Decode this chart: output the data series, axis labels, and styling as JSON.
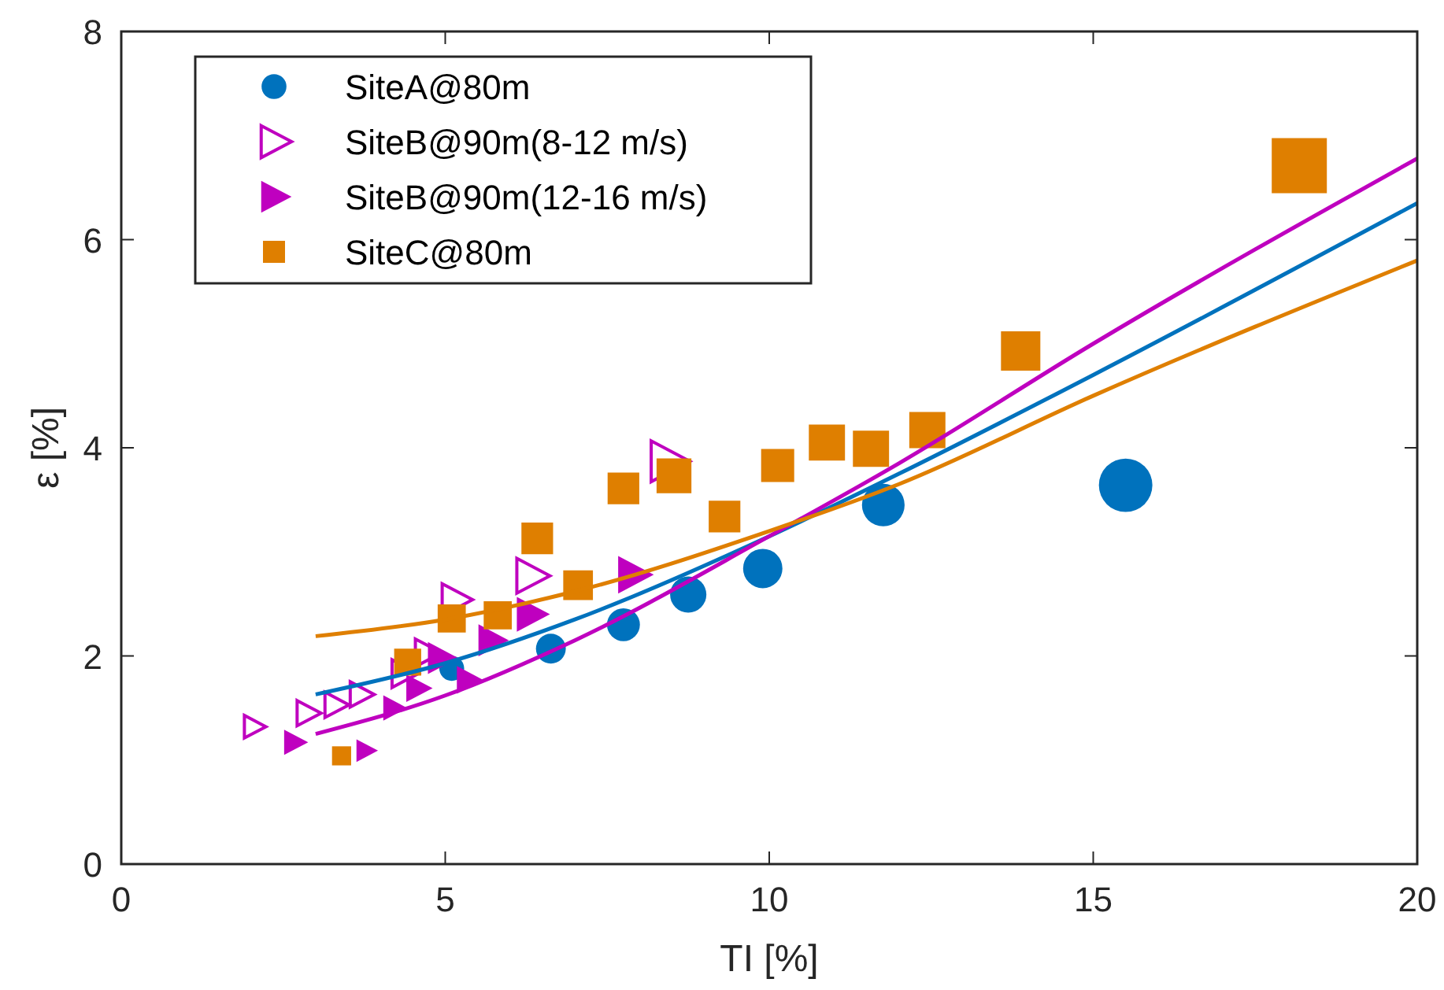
{
  "chart_data": {
    "type": "bubble",
    "xlabel": "TI [%]",
    "ylabel": "ε [%]",
    "xlim": [
      0,
      20
    ],
    "ylim": [
      0,
      8
    ],
    "xticks": [
      0,
      5,
      10,
      15,
      20
    ],
    "yticks": [
      0,
      2,
      4,
      6,
      8
    ],
    "grid": false,
    "legend": "top left",
    "series": [
      {
        "name": "SiteA@80m",
        "marker": "circle",
        "color": "#0072bd",
        "x": [
          5.1,
          6.63,
          7.75,
          8.75,
          9.9,
          11.76,
          15.5
        ],
        "values": [
          1.88,
          2.07,
          2.3,
          2.59,
          2.84,
          3.45,
          3.64
        ],
        "sizes": [
          0.16,
          0.23,
          0.28,
          0.34,
          0.4,
          0.47,
          0.74
        ]
      },
      {
        "name": "SiteB@90m(8-12 m/s)",
        "marker": "triangle-open",
        "color": "#bf00bf",
        "x": [
          2.04,
          2.87,
          3.3,
          3.69,
          4.35,
          4.71,
          5.15,
          6.32,
          8.43
        ],
        "values": [
          1.32,
          1.45,
          1.53,
          1.63,
          1.83,
          2.03,
          2.54,
          2.77,
          3.87
        ],
        "sizes": [
          0.08,
          0.1,
          0.1,
          0.1,
          0.12,
          0.12,
          0.16,
          0.19,
          0.26
        ]
      },
      {
        "name": "SiteB@90m(12-16 m/s)",
        "marker": "triangle",
        "color": "#bf00bf",
        "x": [
          2.67,
          3.77,
          4.2,
          4.57,
          4.93,
          5.35,
          5.71,
          6.32,
          7.9
        ],
        "values": [
          1.17,
          1.09,
          1.5,
          1.69,
          1.98,
          1.77,
          2.15,
          2.4,
          2.78
        ],
        "sizes": [
          0.1,
          0.08,
          0.1,
          0.12,
          0.16,
          0.12,
          0.16,
          0.19,
          0.22
        ]
      },
      {
        "name": "SiteC@80m",
        "marker": "square",
        "color": "#df7f00",
        "x": [
          3.4,
          4.42,
          5.1,
          5.81,
          6.42,
          7.05,
          7.75,
          8.53,
          9.31,
          10.13,
          10.89,
          11.57,
          12.44,
          13.88,
          18.18
        ],
        "values": [
          1.04,
          1.94,
          2.36,
          2.39,
          3.13,
          2.68,
          3.61,
          3.73,
          3.34,
          3.83,
          4.05,
          3.99,
          4.17,
          4.93,
          6.71
        ],
        "sizes": [
          0.12,
          0.24,
          0.26,
          0.26,
          0.33,
          0.29,
          0.33,
          0.4,
          0.33,
          0.36,
          0.43,
          0.43,
          0.43,
          0.51,
          1
        ]
      },
      {
        "type": "line",
        "color": "#0072bd",
        "x": [
          3,
          5,
          7,
          10,
          12,
          15,
          20
        ],
        "values": [
          1.63,
          1.93,
          2.35,
          3.15,
          3.75,
          4.7,
          6.35
        ]
      },
      {
        "type": "line",
        "color": "#bf00bf",
        "x": [
          3,
          5,
          7,
          10,
          12,
          15,
          20
        ],
        "values": [
          1.25,
          1.62,
          2.15,
          3.15,
          3.85,
          5.0,
          6.78
        ]
      },
      {
        "type": "line",
        "color": "#df7f00",
        "x": [
          3,
          5,
          7,
          10,
          12,
          15,
          20
        ],
        "values": [
          2.19,
          2.35,
          2.62,
          3.2,
          3.65,
          4.5,
          5.8
        ]
      }
    ]
  }
}
